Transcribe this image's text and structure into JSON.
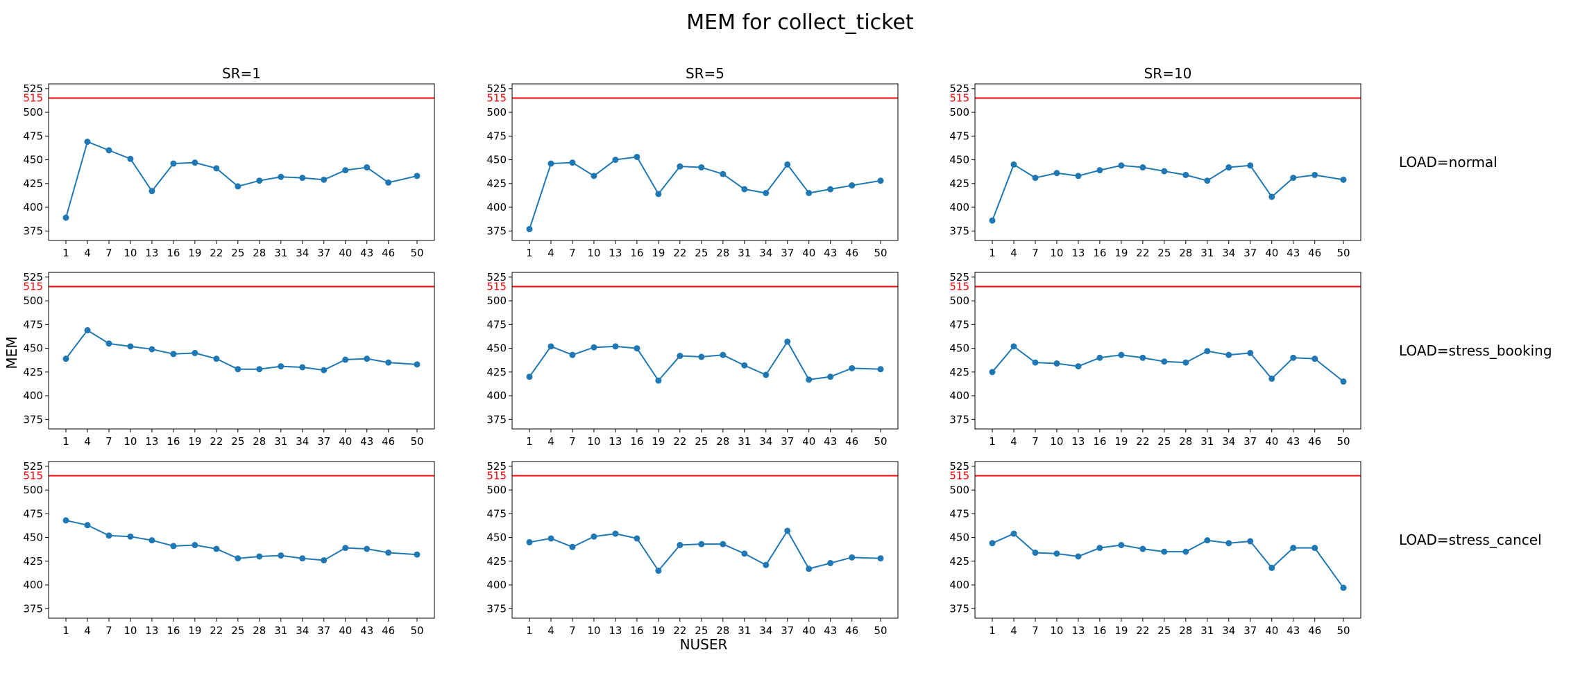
{
  "figure": {
    "title": "MEM for collect_ticket",
    "ylabel": "MEM",
    "xlabel": "NUSER"
  },
  "chart_data": {
    "type": "line",
    "title": "MEM for collect_ticket",
    "xlabel": "NUSER",
    "ylabel": "MEM",
    "x": [
      1,
      4,
      7,
      10,
      13,
      16,
      19,
      22,
      25,
      28,
      31,
      34,
      37,
      40,
      43,
      46,
      50
    ],
    "ylim": [
      365,
      530
    ],
    "yticks": [
      375,
      400,
      425,
      450,
      475,
      500,
      525
    ],
    "reference_line": {
      "y": 515,
      "label": "515",
      "color": "#ff0000"
    },
    "series_color": "#1f77b4",
    "columns": [
      "SR=1",
      "SR=5",
      "SR=10"
    ],
    "rows": [
      "LOAD=normal",
      "LOAD=stress_booking",
      "LOAD=stress_cancel"
    ],
    "panels": [
      {
        "row": 0,
        "col": 0,
        "values": [
          389,
          469,
          460,
          451,
          417,
          446,
          447,
          441,
          422,
          428,
          432,
          431,
          429,
          439,
          442,
          426,
          433
        ]
      },
      {
        "row": 0,
        "col": 1,
        "values": [
          377,
          446,
          447,
          433,
          450,
          453,
          414,
          443,
          442,
          435,
          419,
          415,
          445,
          415,
          419,
          423,
          428
        ]
      },
      {
        "row": 0,
        "col": 2,
        "values": [
          386,
          445,
          431,
          436,
          433,
          439,
          444,
          442,
          438,
          434,
          428,
          442,
          444,
          411,
          431,
          434,
          429
        ]
      },
      {
        "row": 1,
        "col": 0,
        "values": [
          439,
          469,
          455,
          452,
          449,
          444,
          445,
          439,
          428,
          428,
          431,
          430,
          427,
          438,
          439,
          435,
          433
        ]
      },
      {
        "row": 1,
        "col": 1,
        "values": [
          420,
          452,
          443,
          451,
          452,
          450,
          416,
          442,
          441,
          443,
          432,
          422,
          457,
          417,
          420,
          429,
          428
        ]
      },
      {
        "row": 1,
        "col": 2,
        "values": [
          425,
          452,
          435,
          434,
          431,
          440,
          443,
          440,
          436,
          435,
          447,
          443,
          445,
          418,
          440,
          439,
          415
        ]
      },
      {
        "row": 2,
        "col": 0,
        "values": [
          468,
          463,
          452,
          451,
          447,
          441,
          442,
          438,
          428,
          430,
          431,
          428,
          426,
          439,
          438,
          434,
          432
        ]
      },
      {
        "row": 2,
        "col": 1,
        "values": [
          445,
          449,
          440,
          451,
          454,
          449,
          415,
          442,
          443,
          443,
          433,
          421,
          457,
          417,
          423,
          429,
          428
        ]
      },
      {
        "row": 2,
        "col": 2,
        "values": [
          444,
          454,
          434,
          433,
          430,
          439,
          442,
          438,
          435,
          435,
          447,
          444,
          446,
          418,
          439,
          439,
          397
        ]
      }
    ]
  }
}
